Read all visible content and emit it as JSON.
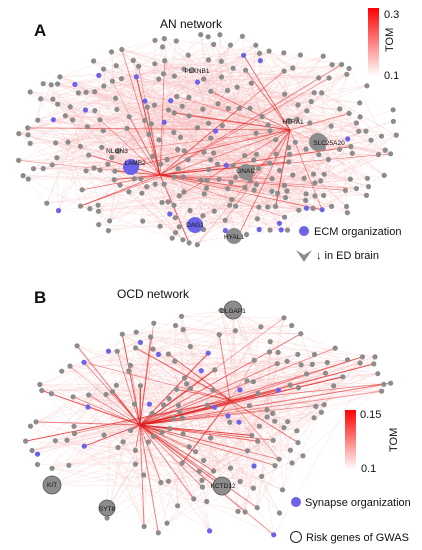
{
  "colors": {
    "node_gray": "#8c8c8c",
    "node_blue": "#6b63e8",
    "edge_pale": "#f6b8b8",
    "edge_strong": "#e02020",
    "scale_top": "#ff0000",
    "scale_bottom": "#ffffff"
  },
  "panels": [
    {
      "letter": "A",
      "title": "AN network",
      "colorbar": {
        "title": "TOM",
        "max_label": "0.3",
        "min_label": "0.1"
      },
      "legend": [
        {
          "marker": "blue-circle",
          "label": "ECM organization"
        },
        {
          "marker": "gray-chevron",
          "label": "↓ in ED brain"
        }
      ],
      "genes": [
        "PLXNB1",
        "HTRA1",
        "NLGN3",
        "SLC25A20",
        "LAMB2",
        "GNAI2",
        "DAG1",
        "HYAL1"
      ]
    },
    {
      "letter": "B",
      "title": "OCD network",
      "colorbar": {
        "title": "TOM",
        "max_label": "0.15",
        "min_label": "0.1"
      },
      "legend": [
        {
          "marker": "blue-circle",
          "label": "Synapse organization"
        },
        {
          "marker": "open-circle",
          "label": "Risk genes of GWAS"
        }
      ],
      "genes": [
        "DLGAP1",
        "KIT",
        "KCTD12",
        "SYT6"
      ]
    }
  ]
}
